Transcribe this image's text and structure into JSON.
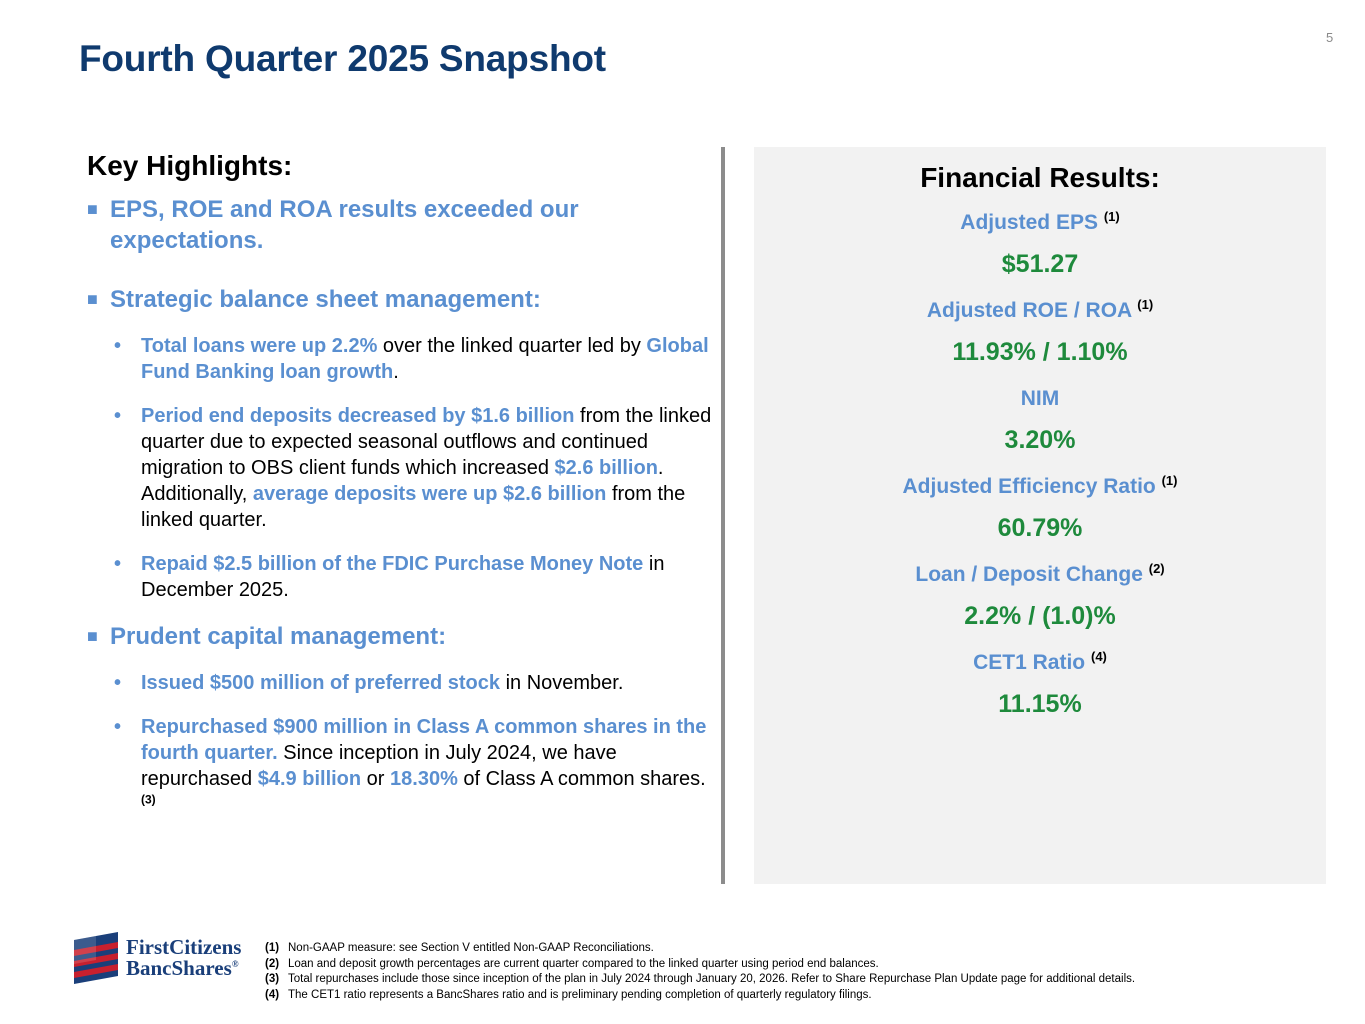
{
  "page": {
    "number": "5",
    "title": "Fourth Quarter 2025 Snapshot"
  },
  "highlights": {
    "heading": "Key Highlights:",
    "h1": "EPS, ROE and ROA results exceeded our expectations.",
    "h2": "Strategic balance sheet management:",
    "h2_items": {
      "i1": {
        "b1": "Total loans were up 2.2%",
        "t1": " over the linked quarter led by ",
        "b2": "Global Fund Banking loan growth",
        "t2": "."
      },
      "i2": {
        "b1": "Period end deposits decreased by $1.6 billion",
        "t1": " from the linked quarter due to expected seasonal outflows and continued migration to OBS client funds which increased ",
        "b2": "$2.6 billion",
        "t2": ". Additionally, ",
        "b3": "average deposits were up $2.6 billion",
        "t3": " from the linked quarter."
      },
      "i3": {
        "b1": "Repaid $2.5 billion of the FDIC Purchase Money Note",
        "t1": " in December 2025."
      }
    },
    "h3": "Prudent capital management:",
    "h3_items": {
      "i1": {
        "b1": "Issued $500 million of preferred stock",
        "t1": " in November."
      },
      "i2": {
        "b1": "Repurchased $900 million in Class A common shares in the fourth quarter.",
        "t1": " Since inception in July 2024, we have repurchased ",
        "b2": "$4.9 billion",
        "t2": " or ",
        "b3": "18.30%",
        "t3": " of Class A common shares. ",
        "sup": "(3)"
      }
    }
  },
  "financial_results": {
    "title": "Financial Results:",
    "metrics": [
      {
        "label": "Adjusted EPS",
        "note": "(1)",
        "value": "$51.27"
      },
      {
        "label": "Adjusted ROE / ROA",
        "note": "(1)",
        "value": "11.93% / 1.10%"
      },
      {
        "label": "NIM",
        "note": "",
        "value": "3.20%"
      },
      {
        "label": "Adjusted Efficiency Ratio",
        "note": "(1)",
        "value": "60.79%"
      },
      {
        "label": "Loan / Deposit Change",
        "note": "(2)",
        "value": "2.2% / (1.0)%"
      },
      {
        "label": "CET1 Ratio",
        "note": "(4)",
        "value": "11.15%"
      }
    ]
  },
  "logo": {
    "line1": "FirstCitizens",
    "line2": "BancShares",
    "reg": "®"
  },
  "footnotes": [
    {
      "num": "(1)",
      "text": "Non-GAAP measure: see Section V entitled Non-GAAP Reconciliations."
    },
    {
      "num": "(2)",
      "text": "Loan and deposit growth percentages are current quarter compared to the linked quarter using period end balances."
    },
    {
      "num": "(3)",
      "text": "Total repurchases include those since inception of the plan in July 2024 through January 20, 2026. Refer to Share Repurchase Plan Update page for additional details."
    },
    {
      "num": "(4)",
      "text": "The CET1 ratio represents a BancShares ratio and is preliminary pending completion of quarterly regulatory filings."
    }
  ],
  "colors": {
    "title": "#0f3a6e",
    "accent_blue": "#5a8fd0",
    "value_green": "#1e8a3c",
    "panel_bg": "#f2f2f2",
    "logo_red": "#c8202e",
    "logo_blue": "#1a3f7a"
  }
}
